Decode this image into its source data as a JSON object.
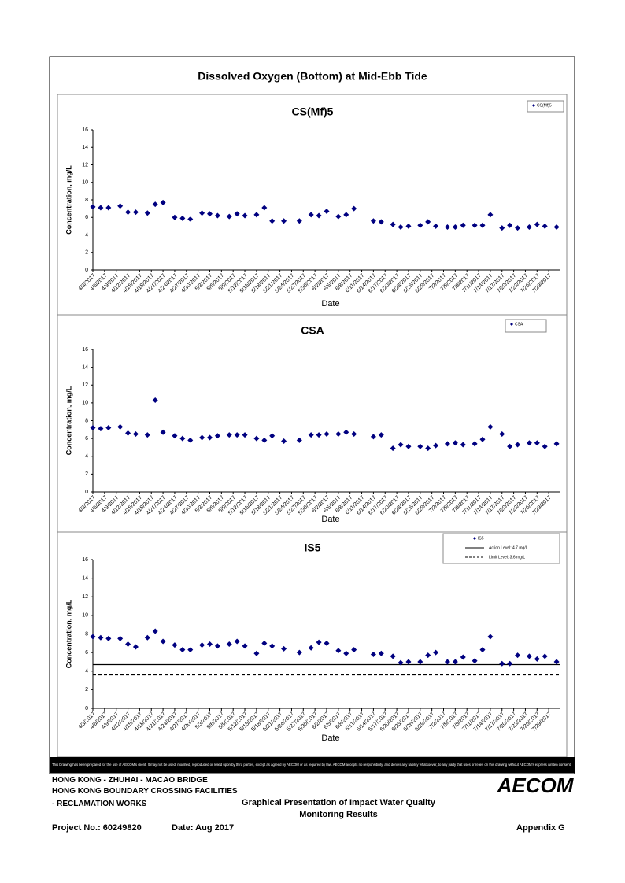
{
  "title": "Dissolved Oxygen (Bottom) at Mid-Ebb Tide",
  "chart_data": [
    {
      "type": "scatter",
      "title": "CS(Mf)5",
      "xlabel": "Date",
      "ylabel": "Concentration, mg/L",
      "legend": "top-right",
      "x": [
        "4/3/2017",
        "4/5/2017",
        "4/7/2017",
        "4/10/2017",
        "4/12/2017",
        "4/14/2017",
        "4/17/2017",
        "4/19/2017",
        "4/21/2017",
        "4/24/2017",
        "4/26/2017",
        "4/28/2017",
        "5/1/2017",
        "5/3/2017",
        "5/5/2017",
        "5/8/2017",
        "5/10/2017",
        "5/12/2017",
        "5/15/2017",
        "5/17/2017",
        "5/19/2017",
        "5/22/2017",
        "5/26/2017",
        "5/29/2017",
        "5/31/2017",
        "6/2/2017",
        "6/5/2017",
        "6/7/2017",
        "6/9/2017",
        "6/14/2017",
        "6/16/2017",
        "6/19/2017",
        "6/21/2017",
        "6/23/2017",
        "6/26/2017",
        "6/28/2017",
        "6/30/2017",
        "7/3/2017",
        "7/5/2017",
        "7/7/2017",
        "7/10/2017",
        "7/12/2017",
        "7/14/2017",
        "7/17/2017",
        "7/19/2017",
        "7/21/2017",
        "7/24/2017",
        "7/26/2017",
        "7/28/2017",
        "7/31/2017"
      ],
      "series": [
        {
          "name": "CS(Mf)5",
          "color": "#000080",
          "values": [
            7.2,
            7.1,
            7.1,
            7.3,
            6.6,
            6.6,
            6.5,
            7.5,
            7.7,
            6.0,
            5.9,
            5.8,
            6.5,
            6.4,
            6.2,
            6.1,
            6.4,
            6.2,
            6.3,
            7.1,
            5.6,
            5.6,
            5.6,
            6.3,
            6.2,
            6.7,
            6.1,
            6.3,
            7.0,
            5.6,
            5.5,
            5.2,
            4.9,
            5.0,
            5.1,
            5.5,
            5.0,
            4.9,
            4.9,
            5.1,
            5.1,
            5.1,
            6.3,
            4.8,
            5.1,
            4.8,
            4.9,
            5.2,
            5.0,
            4.9
          ]
        }
      ],
      "xlim": [
        "4/3/2017",
        "8/1/2017"
      ],
      "xticks": [
        "4/3/2017",
        "4/6/2017",
        "4/9/2017",
        "4/12/2017",
        "4/15/2017",
        "4/18/2017",
        "4/21/2017",
        "4/24/2017",
        "4/27/2017",
        "4/30/2017",
        "5/3/2017",
        "5/6/2017",
        "5/9/2017",
        "5/12/2017",
        "5/15/2017",
        "5/18/2017",
        "5/21/2017",
        "5/24/2017",
        "5/27/2017",
        "5/30/2017",
        "6/2/2017",
        "6/5/2017",
        "6/8/2017",
        "6/11/2017",
        "6/14/2017",
        "6/17/2017",
        "6/20/2017",
        "6/23/2017",
        "6/26/2017",
        "6/29/2017",
        "7/2/2017",
        "7/5/2017",
        "7/8/2017",
        "7/11/2017",
        "7/14/2017",
        "7/17/2017",
        "7/20/2017",
        "7/23/2017",
        "7/26/2017",
        "7/29/2017"
      ],
      "ylim": [
        0,
        16
      ],
      "yticks": [
        0,
        2,
        4,
        6,
        8,
        10,
        12,
        14,
        16
      ]
    },
    {
      "type": "scatter",
      "title": "CSA",
      "xlabel": "Date",
      "ylabel": "Concentration, mg/L",
      "legend": "top-right",
      "x": [
        "4/3/2017",
        "4/5/2017",
        "4/7/2017",
        "4/10/2017",
        "4/12/2017",
        "4/14/2017",
        "4/17/2017",
        "4/19/2017",
        "4/21/2017",
        "4/24/2017",
        "4/26/2017",
        "4/28/2017",
        "5/1/2017",
        "5/3/2017",
        "5/5/2017",
        "5/8/2017",
        "5/10/2017",
        "5/12/2017",
        "5/15/2017",
        "5/17/2017",
        "5/19/2017",
        "5/22/2017",
        "5/26/2017",
        "5/29/2017",
        "5/31/2017",
        "6/2/2017",
        "6/5/2017",
        "6/7/2017",
        "6/9/2017",
        "6/14/2017",
        "6/16/2017",
        "6/19/2017",
        "6/21/2017",
        "6/23/2017",
        "6/26/2017",
        "6/28/2017",
        "6/30/2017",
        "7/3/2017",
        "7/5/2017",
        "7/7/2017",
        "7/10/2017",
        "7/12/2017",
        "7/14/2017",
        "7/17/2017",
        "7/19/2017",
        "7/21/2017",
        "7/24/2017",
        "7/26/2017",
        "7/28/2017",
        "7/31/2017"
      ],
      "series": [
        {
          "name": "CSA",
          "color": "#000080",
          "values": [
            7.2,
            7.1,
            7.2,
            7.3,
            6.6,
            6.5,
            6.4,
            10.3,
            6.7,
            6.3,
            6.0,
            5.8,
            6.1,
            6.1,
            6.3,
            6.4,
            6.4,
            6.4,
            6.0,
            5.8,
            6.3,
            5.7,
            5.8,
            6.4,
            6.4,
            6.5,
            6.5,
            6.7,
            6.5,
            6.2,
            6.4,
            4.9,
            5.3,
            5.1,
            5.1,
            4.9,
            5.2,
            5.4,
            5.5,
            5.3,
            5.4,
            5.9,
            7.3,
            6.5,
            5.1,
            5.3,
            5.5,
            5.5,
            5.1,
            5.4
          ]
        }
      ],
      "xlim": [
        "4/3/2017",
        "8/1/2017"
      ],
      "xticks": [
        "4/3/2017",
        "4/6/2017",
        "4/9/2017",
        "4/12/2017",
        "4/15/2017",
        "4/18/2017",
        "4/21/2017",
        "4/24/2017",
        "4/27/2017",
        "4/30/2017",
        "5/3/2017",
        "5/6/2017",
        "5/9/2017",
        "5/12/2017",
        "5/15/2017",
        "5/18/2017",
        "5/21/2017",
        "5/24/2017",
        "5/27/2017",
        "5/30/2017",
        "6/2/2017",
        "6/5/2017",
        "6/8/2017",
        "6/11/2017",
        "6/14/2017",
        "6/17/2017",
        "6/20/2017",
        "6/23/2017",
        "6/26/2017",
        "6/29/2017",
        "7/2/2017",
        "7/5/2017",
        "7/8/2017",
        "7/11/2017",
        "7/14/2017",
        "7/17/2017",
        "7/20/2017",
        "7/23/2017",
        "7/26/2017",
        "7/29/2017"
      ],
      "ylim": [
        0,
        16
      ],
      "yticks": [
        0,
        2,
        4,
        6,
        8,
        10,
        12,
        14,
        16
      ]
    },
    {
      "type": "scatter",
      "title": "IS5",
      "xlabel": "Date",
      "ylabel": "Concentration, mg/L",
      "legend": "top-right",
      "x": [
        "4/3/2017",
        "4/5/2017",
        "4/7/2017",
        "4/10/2017",
        "4/12/2017",
        "4/14/2017",
        "4/17/2017",
        "4/19/2017",
        "4/21/2017",
        "4/24/2017",
        "4/26/2017",
        "4/28/2017",
        "5/1/2017",
        "5/3/2017",
        "5/5/2017",
        "5/8/2017",
        "5/10/2017",
        "5/12/2017",
        "5/15/2017",
        "5/17/2017",
        "5/19/2017",
        "5/22/2017",
        "5/26/2017",
        "5/29/2017",
        "5/31/2017",
        "6/2/2017",
        "6/5/2017",
        "6/7/2017",
        "6/9/2017",
        "6/14/2017",
        "6/16/2017",
        "6/19/2017",
        "6/21/2017",
        "6/23/2017",
        "6/26/2017",
        "6/28/2017",
        "6/30/2017",
        "7/3/2017",
        "7/5/2017",
        "7/7/2017",
        "7/10/2017",
        "7/12/2017",
        "7/14/2017",
        "7/17/2017",
        "7/19/2017",
        "7/21/2017",
        "7/24/2017",
        "7/26/2017",
        "7/28/2017",
        "7/31/2017"
      ],
      "series": [
        {
          "name": "IS5",
          "color": "#000080",
          "values": [
            7.7,
            7.6,
            7.5,
            7.5,
            6.9,
            6.6,
            7.6,
            8.3,
            7.2,
            6.8,
            6.3,
            6.3,
            6.8,
            6.9,
            6.7,
            6.9,
            7.2,
            6.7,
            5.9,
            7.0,
            6.7,
            6.4,
            6.0,
            6.5,
            7.1,
            7.0,
            6.2,
            5.9,
            6.3,
            5.8,
            5.9,
            5.6,
            4.9,
            5.0,
            5.0,
            5.7,
            6.0,
            5.0,
            5.0,
            5.5,
            5.1,
            6.3,
            7.7,
            4.8,
            4.8,
            5.7,
            5.6,
            5.3,
            5.6,
            5.0
          ]
        }
      ],
      "reference_lines": [
        {
          "name": "Action Level: 4.7 mg/L",
          "value": 4.7,
          "style": "solid",
          "color": "#000000"
        },
        {
          "name": "Limit Level: 3.6 mg/L",
          "value": 3.6,
          "style": "dashed",
          "color": "#000000"
        }
      ],
      "xlim": [
        "4/3/2017",
        "8/1/2017"
      ],
      "xticks": [
        "4/3/2017",
        "4/6/2017",
        "4/9/2017",
        "4/12/2017",
        "4/15/2017",
        "4/18/2017",
        "4/21/2017",
        "4/24/2017",
        "4/27/2017",
        "4/30/2017",
        "5/3/2017",
        "5/6/2017",
        "5/9/2017",
        "5/12/2017",
        "5/15/2017",
        "5/18/2017",
        "5/21/2017",
        "5/24/2017",
        "5/27/2017",
        "5/30/2017",
        "6/2/2017",
        "6/5/2017",
        "6/8/2017",
        "6/11/2017",
        "6/14/2017",
        "6/17/2017",
        "6/20/2017",
        "6/23/2017",
        "6/26/2017",
        "6/29/2017",
        "7/2/2017",
        "7/5/2017",
        "7/8/2017",
        "7/11/2017",
        "7/14/2017",
        "7/17/2017",
        "7/20/2017",
        "7/23/2017",
        "7/26/2017",
        "7/29/2017"
      ],
      "ylim": [
        0,
        16
      ],
      "yticks": [
        0,
        2,
        4,
        6,
        8,
        10,
        12,
        14,
        16
      ]
    }
  ],
  "disclaimer": "This Drawing has been prepared for the use of AECOM's client. It may not be used, modified, reproduced or relied upon by third parties, except as agreed by AECOM or as required by law. AECOM accepts no responsibility, and denies any liability whatsoever, to any party that uses or relies on this drawing without AECOM's express written consent.",
  "footer": {
    "project_lines": [
      "HONG KONG - ZHUHAI - MACAO BRIDGE",
      "HONG KONG BOUNDARY CROSSING FACILITIES",
      "- RECLAMATION WORKS"
    ],
    "logo": "AECOM",
    "caption": "Graphical Presentation of Impact Water Quality Monitoring Results",
    "project_no": "Project No.: 60249820",
    "date": "Date: Aug 2017",
    "appendix": "Appendix G"
  }
}
